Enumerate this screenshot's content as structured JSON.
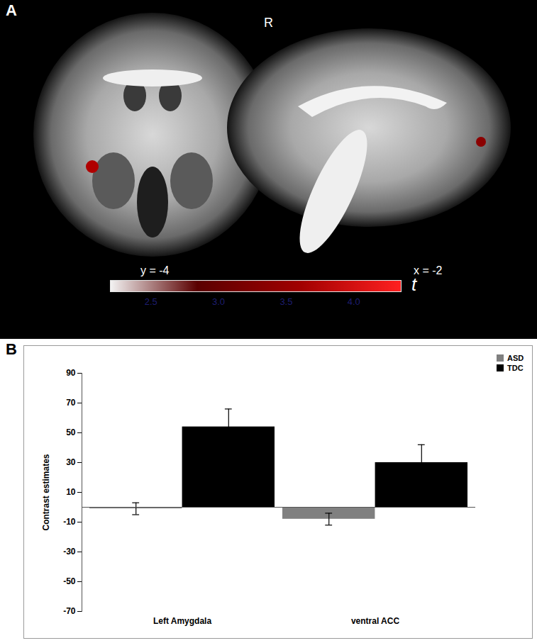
{
  "figure": {
    "panel_labels": [
      "A",
      "B"
    ]
  },
  "image_panel": {
    "orientation_label": "R",
    "slice_labels": [
      "y = -4",
      "x = -2"
    ],
    "colorbar": {
      "label": "t",
      "range": [
        2.2,
        4.35
      ],
      "ticks": [
        2.5,
        {
          "value": 3,
          "label": "3.0"
        },
        3.5,
        {
          "value": 4,
          "label": "4.0"
        }
      ]
    }
  },
  "chart_data": {
    "type": "bar",
    "categories": [
      "Left Amygdala",
      "ventral ACC"
    ],
    "series": [
      {
        "name": "ASD",
        "color": "#808080",
        "values": [
          -1,
          -8
        ],
        "errors": [
          4,
          4
        ]
      },
      {
        "name": "TDC",
        "color": "#000000",
        "values": [
          54,
          30
        ],
        "errors": [
          12,
          12
        ]
      }
    ],
    "ylabel": "Contrast estimates",
    "ylim": [
      -70,
      90
    ],
    "yticks": [
      -70,
      -50,
      -30,
      -10,
      10,
      30,
      50,
      70,
      90
    ],
    "legend": "top-right",
    "grid": false
  }
}
